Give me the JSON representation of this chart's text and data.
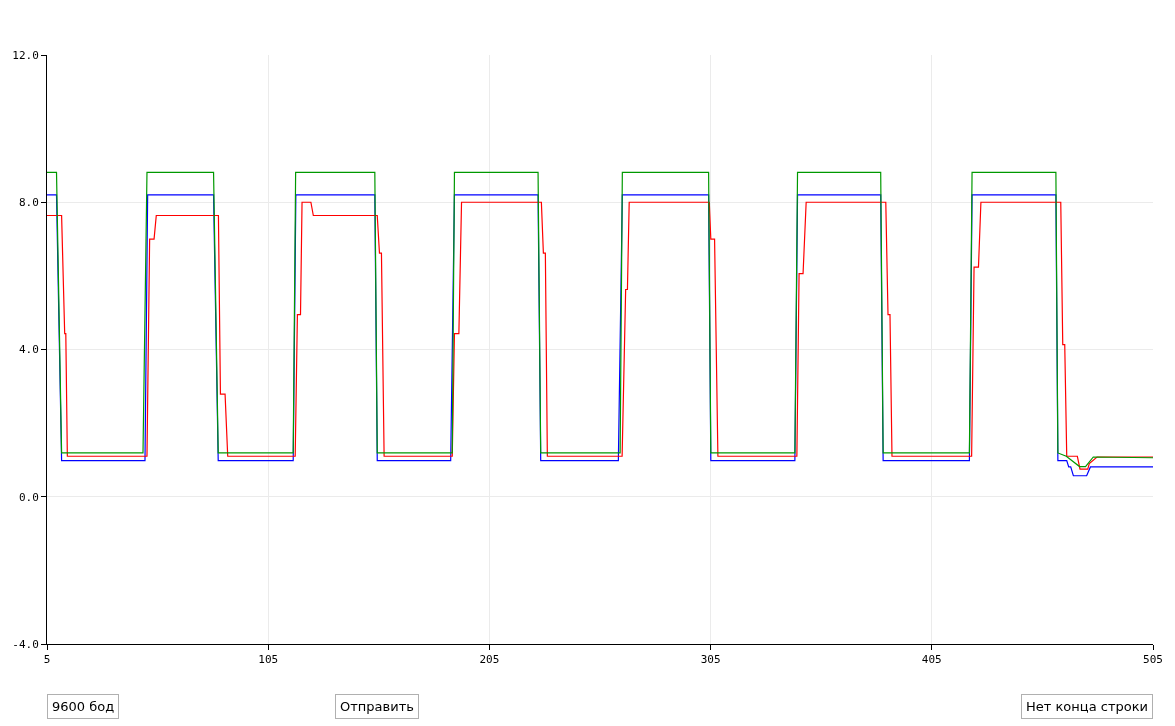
{
  "chart_data": {
    "type": "line",
    "xlim": [
      5,
      505
    ],
    "xticks": [
      5,
      105,
      205,
      305,
      405,
      505
    ],
    "ylim": [
      -4,
      12
    ],
    "yticks": [
      {
        "value": -4,
        "label": "-4.0"
      },
      {
        "value": 0,
        "label": "0.0"
      },
      {
        "value": 4,
        "label": "4.0"
      },
      {
        "value": 8,
        "label": "8.0"
      },
      {
        "value": 12,
        "label": "12.0"
      }
    ],
    "grid": true,
    "marker": "none",
    "line_style": "solid",
    "annotations": [
      "9600 бод",
      "Отправить",
      "Нет конца строки"
    ],
    "series": [
      {
        "color": "#0000ff",
        "x": [
          5,
          9.3,
          11.6,
          49.3,
          50.5,
          80.3,
          82.4,
          116.3,
          117.5,
          153.2,
          154.3,
          187.5,
          189.2,
          227,
          228.2,
          263.3,
          265.1,
          304.1,
          305.1,
          343.1,
          344.3,
          381.9,
          383,
          422,
          423.2,
          461.1,
          462,
          466,
          466.9,
          467.8,
          469,
          475,
          476.7,
          505
        ],
        "values": [
          8.2,
          8.2,
          0.98,
          0.98,
          8.2,
          8.2,
          0.98,
          0.98,
          8.2,
          8.2,
          0.98,
          0.98,
          8.2,
          8.2,
          0.98,
          0.98,
          8.2,
          8.2,
          0.98,
          0.98,
          8.2,
          8.2,
          0.98,
          0.98,
          8.2,
          8.2,
          0.98,
          0.98,
          0.81,
          0.81,
          0.57,
          0.57,
          0.81,
          0.81
        ]
      },
      {
        "color": "#ff0000",
        "x": [
          5,
          11.6,
          13,
          13.5,
          14.2,
          50.2,
          51.4,
          53.4,
          54.4,
          82.5,
          83.4,
          85.5,
          86.7,
          117.2,
          118.2,
          119.6,
          120.3,
          124.3,
          125.4,
          154.3,
          155.3,
          156.2,
          157.4,
          188.2,
          189.2,
          191.2,
          192.4,
          228.5,
          229.4,
          230.3,
          231.2,
          265,
          266.6,
          267.4,
          268.2,
          304.4,
          305.1,
          306.8,
          308.3,
          344,
          345,
          346.8,
          348.2,
          384.2,
          385.2,
          386.1,
          387,
          423,
          424.1,
          426.1,
          427.2,
          463.3,
          464.2,
          465.1,
          466,
          470.8,
          472,
          475.5,
          476.2,
          479.7,
          505
        ],
        "values": [
          7.64,
          7.64,
          4.43,
          4.43,
          1.1,
          1.1,
          7.0,
          7.0,
          7.64,
          7.64,
          2.79,
          2.79,
          1.1,
          1.1,
          4.95,
          4.95,
          8.0,
          8.0,
          7.64,
          7.64,
          6.62,
          6.62,
          1.1,
          1.1,
          4.43,
          4.43,
          8.0,
          8.0,
          6.62,
          6.62,
          1.1,
          1.1,
          5.63,
          5.63,
          8.0,
          8.0,
          7.0,
          7.0,
          1.1,
          1.1,
          6.06,
          6.06,
          8.0,
          8.0,
          4.95,
          4.95,
          1.1,
          1.1,
          6.24,
          6.24,
          8.0,
          8.0,
          4.13,
          4.13,
          1.1,
          1.1,
          0.75,
          0.75,
          0.9,
          1.08,
          1.08
        ]
      },
      {
        "color": "#009900",
        "x": [
          5,
          9.3,
          11.6,
          48.4,
          50.2,
          80.3,
          82.4,
          116.3,
          117.4,
          153.2,
          154.3,
          188.2,
          189.2,
          227,
          228.2,
          264.1,
          265.1,
          304.1,
          305.1,
          343.1,
          344.3,
          381.9,
          383,
          422,
          423.2,
          461.1,
          462,
          465.8,
          471.8,
          474.5,
          478,
          505
        ],
        "values": [
          8.81,
          8.81,
          1.19,
          1.19,
          8.81,
          8.81,
          1.19,
          1.19,
          8.81,
          8.81,
          1.19,
          1.19,
          8.81,
          8.81,
          1.19,
          1.19,
          8.81,
          8.81,
          1.19,
          1.19,
          8.81,
          8.81,
          1.19,
          1.19,
          8.81,
          8.81,
          1.19,
          1.1,
          0.82,
          0.82,
          1.08,
          1.06
        ]
      }
    ]
  }
}
